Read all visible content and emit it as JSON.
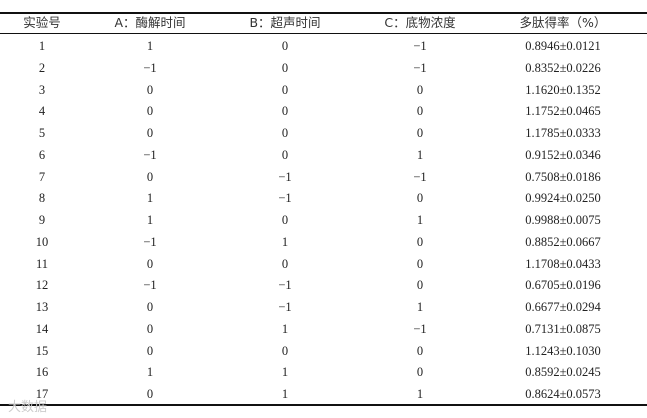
{
  "table": {
    "headers": [
      "实验号",
      "A：酶解时间",
      "B：超声时间",
      "C：底物浓度",
      "多肽得率（%）"
    ],
    "rows": [
      [
        "1",
        "1",
        "0",
        "−1",
        "0.8946±0.0121"
      ],
      [
        "2",
        "−1",
        "0",
        "−1",
        "0.8352±0.0226"
      ],
      [
        "3",
        "0",
        "0",
        "0",
        "1.1620±0.1352"
      ],
      [
        "4",
        "0",
        "0",
        "0",
        "1.1752±0.0465"
      ],
      [
        "5",
        "0",
        "0",
        "0",
        "1.1785±0.0333"
      ],
      [
        "6",
        "−1",
        "0",
        "1",
        "0.9152±0.0346"
      ],
      [
        "7",
        "0",
        "−1",
        "−1",
        "0.7508±0.0186"
      ],
      [
        "8",
        "1",
        "−1",
        "0",
        "0.9924±0.0250"
      ],
      [
        "9",
        "1",
        "0",
        "1",
        "0.9988±0.0075"
      ],
      [
        "10",
        "−1",
        "1",
        "0",
        "0.8852±0.0667"
      ],
      [
        "11",
        "0",
        "0",
        "0",
        "1.1708±0.0433"
      ],
      [
        "12",
        "−1",
        "−1",
        "0",
        "0.6705±0.0196"
      ],
      [
        "13",
        "0",
        "−1",
        "1",
        "0.6677±0.0294"
      ],
      [
        "14",
        "0",
        "1",
        "−1",
        "0.7131±0.0875"
      ],
      [
        "15",
        "0",
        "0",
        "0",
        "1.1243±0.1030"
      ],
      [
        "16",
        "1",
        "1",
        "0",
        "0.8592±0.0245"
      ],
      [
        "17",
        "0",
        "1",
        "1",
        "0.8624±0.0573"
      ]
    ]
  },
  "watermark": "大数据"
}
